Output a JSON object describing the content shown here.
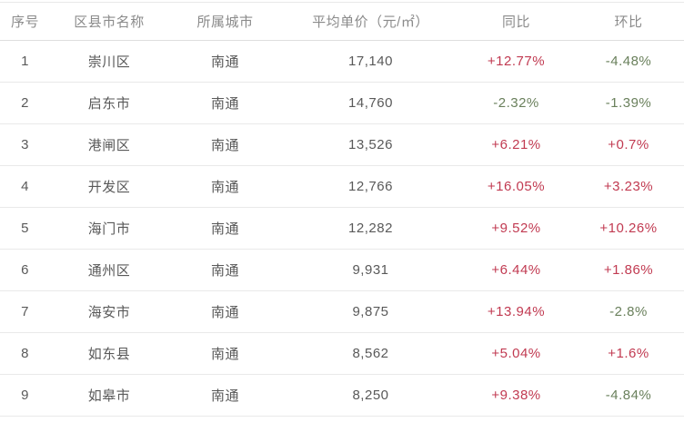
{
  "colors": {
    "increase": "#c13a51",
    "decrease": "#6a805c",
    "header_text": "#8b8b8b",
    "body_text": "#595959",
    "divider": "#e9e9e9"
  },
  "table": {
    "columns": [
      {
        "key": "index",
        "label": "序号"
      },
      {
        "key": "district",
        "label": "区县市名称"
      },
      {
        "key": "city",
        "label": "所属城市"
      },
      {
        "key": "price",
        "label": "平均单价（元/㎡）"
      },
      {
        "key": "yoy",
        "label": "同比"
      },
      {
        "key": "mom",
        "label": "环比"
      }
    ],
    "rows": [
      {
        "index": "1",
        "district": "崇川区",
        "city": "南通",
        "price": "17,140",
        "yoy": "+12.77%",
        "mom": "-4.48%"
      },
      {
        "index": "2",
        "district": "启东市",
        "city": "南通",
        "price": "14,760",
        "yoy": "-2.32%",
        "mom": "-1.39%"
      },
      {
        "index": "3",
        "district": "港闸区",
        "city": "南通",
        "price": "13,526",
        "yoy": "+6.21%",
        "mom": "+0.7%"
      },
      {
        "index": "4",
        "district": "开发区",
        "city": "南通",
        "price": "12,766",
        "yoy": "+16.05%",
        "mom": "+3.23%"
      },
      {
        "index": "5",
        "district": "海门市",
        "city": "南通",
        "price": "12,282",
        "yoy": "+9.52%",
        "mom": "+10.26%"
      },
      {
        "index": "6",
        "district": "通州区",
        "city": "南通",
        "price": "9,931",
        "yoy": "+6.44%",
        "mom": "+1.86%"
      },
      {
        "index": "7",
        "district": "海安市",
        "city": "南通",
        "price": "9,875",
        "yoy": "+13.94%",
        "mom": "-2.8%"
      },
      {
        "index": "8",
        "district": "如东县",
        "city": "南通",
        "price": "8,562",
        "yoy": "+5.04%",
        "mom": "+1.6%"
      },
      {
        "index": "9",
        "district": "如皋市",
        "city": "南通",
        "price": "8,250",
        "yoy": "+9.38%",
        "mom": "-4.84%"
      }
    ]
  },
  "chart_data": {
    "type": "table",
    "columns": [
      "序号",
      "区县市名称",
      "所属城市",
      "平均单价（元/㎡）",
      "同比",
      "环比"
    ],
    "rows": [
      [
        "1",
        "崇川区",
        "南通",
        "17,140",
        "+12.77%",
        "-4.48%"
      ],
      [
        "2",
        "启东市",
        "南通",
        "14,760",
        "-2.32%",
        "-1.39%"
      ],
      [
        "3",
        "港闸区",
        "南通",
        "13,526",
        "+6.21%",
        "+0.7%"
      ],
      [
        "4",
        "开发区",
        "南通",
        "12,766",
        "+16.05%",
        "+3.23%"
      ],
      [
        "5",
        "海门市",
        "南通",
        "12,282",
        "+9.52%",
        "+10.26%"
      ],
      [
        "6",
        "通州区",
        "南通",
        "9,931",
        "+6.44%",
        "+1.86%"
      ],
      [
        "7",
        "海安市",
        "南通",
        "9,875",
        "+13.94%",
        "-2.8%"
      ],
      [
        "8",
        "如东县",
        "南通",
        "8,562",
        "+5.04%",
        "+1.6%"
      ],
      [
        "9",
        "如皋市",
        "南通",
        "8,250",
        "+9.38%",
        "-4.84%"
      ]
    ],
    "layout_hints": {
      "header_row": true,
      "row_dividers": true,
      "positive_color": "#c13a51",
      "negative_color": "#6a805c"
    }
  }
}
